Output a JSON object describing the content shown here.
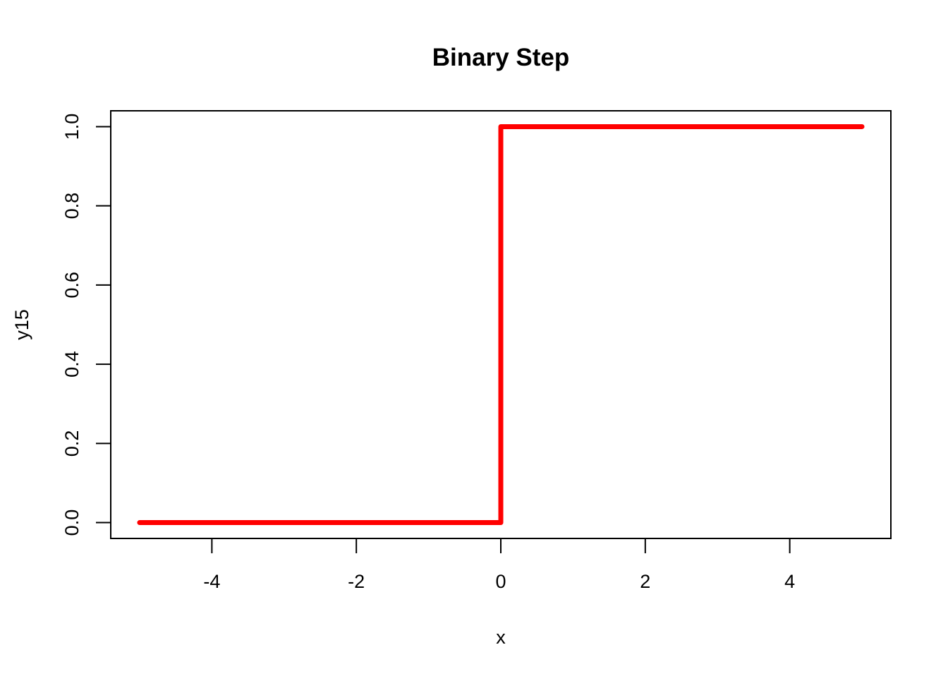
{
  "chart_data": {
    "type": "line",
    "title": "Binary Step",
    "xlabel": "x",
    "ylabel": "y15",
    "xlim": [
      -5.4,
      5.4
    ],
    "ylim": [
      -0.04,
      1.04
    ],
    "x_ticks": [
      -4,
      -2,
      0,
      2,
      4
    ],
    "x_tick_labels": [
      "-4",
      "-2",
      "0",
      "2",
      "4"
    ],
    "y_ticks": [
      0.0,
      0.2,
      0.4,
      0.6,
      0.8,
      1.0
    ],
    "y_tick_labels": [
      "0.0",
      "0.2",
      "0.4",
      "0.6",
      "0.8",
      "1.0"
    ],
    "grid": false,
    "series": [
      {
        "color": "#ff0000",
        "x": [
          -5,
          0,
          0,
          5
        ],
        "y": [
          0,
          0,
          1,
          1
        ]
      }
    ]
  }
}
